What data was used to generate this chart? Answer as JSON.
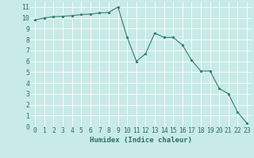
{
  "x": [
    0,
    1,
    2,
    3,
    4,
    5,
    6,
    7,
    8,
    9,
    10,
    11,
    12,
    13,
    14,
    15,
    16,
    17,
    18,
    19,
    20,
    21,
    22,
    23
  ],
  "y": [
    9.8,
    10.0,
    10.1,
    10.15,
    10.2,
    10.3,
    10.35,
    10.45,
    10.5,
    11.0,
    8.2,
    6.0,
    6.7,
    8.6,
    8.2,
    8.2,
    7.5,
    6.1,
    5.1,
    5.1,
    3.5,
    3.0,
    1.3,
    0.3
  ],
  "line_color": "#2e7d6e",
  "marker": "*",
  "marker_size": 2.5,
  "bg_color": "#c8eae8",
  "grid_color": "#ffffff",
  "xlabel": "Humidex (Indice chaleur)",
  "ylabel": "",
  "title": "",
  "xlim": [
    -0.5,
    23.5
  ],
  "ylim": [
    0,
    11.5
  ],
  "yticks": [
    0,
    1,
    2,
    3,
    4,
    5,
    6,
    7,
    8,
    9,
    10,
    11
  ],
  "xticks": [
    0,
    1,
    2,
    3,
    4,
    5,
    6,
    7,
    8,
    9,
    10,
    11,
    12,
    13,
    14,
    15,
    16,
    17,
    18,
    19,
    20,
    21,
    22,
    23
  ],
  "font_color": "#2e7060",
  "font_size": 5.8,
  "xlabel_fontsize": 6.5,
  "linewidth": 0.8
}
